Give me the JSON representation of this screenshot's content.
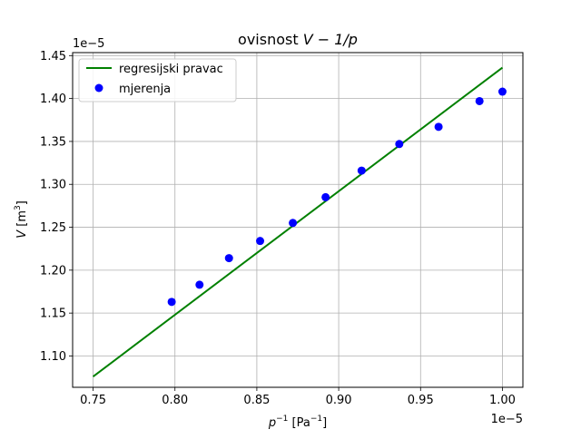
{
  "chart_data": {
    "type": "scatter",
    "title_text": "ovisnost ",
    "title_math": "V − 1/p",
    "xlabel_sym": "p",
    "xlabel_sup": "−1",
    "xlabel_unit_pre": " [Pa",
    "xlabel_unit_sup": "−1",
    "xlabel_unit_post": "]",
    "ylabel_sym": "V",
    "ylabel_unit_pre": " [m",
    "ylabel_unit_sup": "3",
    "ylabel_unit_post": "]",
    "x_offset_label": "1e−5",
    "y_offset_label": "1e−5",
    "xlim": [
      0.7375,
      1.0125
    ],
    "ylim": [
      1.0635,
      1.4535
    ],
    "xticks": [
      0.75,
      0.8,
      0.85,
      0.9,
      0.95,
      1.0
    ],
    "xtick_labels": [
      "0.75",
      "0.80",
      "0.85",
      "0.90",
      "0.95",
      "1.00"
    ],
    "yticks": [
      1.1,
      1.15,
      1.2,
      1.25,
      1.3,
      1.35,
      1.4,
      1.45
    ],
    "ytick_labels": [
      "1.10",
      "1.15",
      "1.20",
      "1.25",
      "1.30",
      "1.35",
      "1.40",
      "1.45"
    ],
    "grid": true,
    "legend_position": "top-left",
    "series": [
      {
        "name": "regresijski pravac",
        "kind": "line",
        "color": "#008000",
        "x": [
          0.75,
          1.0
        ],
        "y": [
          1.076,
          1.436
        ]
      },
      {
        "name": "mjerenja",
        "kind": "scatter",
        "color": "#0000ff",
        "x": [
          0.798,
          0.815,
          0.833,
          0.852,
          0.872,
          0.892,
          0.914,
          0.937,
          0.961,
          0.986,
          1.0
        ],
        "y": [
          1.163,
          1.183,
          1.214,
          1.234,
          1.255,
          1.285,
          1.316,
          1.347,
          1.367,
          1.397,
          1.408
        ]
      }
    ]
  }
}
